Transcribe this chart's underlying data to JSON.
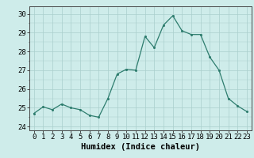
{
  "x": [
    0,
    1,
    2,
    3,
    4,
    5,
    6,
    7,
    8,
    9,
    10,
    11,
    12,
    13,
    14,
    15,
    16,
    17,
    18,
    19,
    20,
    21,
    22,
    23
  ],
  "y": [
    24.7,
    25.05,
    24.9,
    25.2,
    25.0,
    24.9,
    24.6,
    24.5,
    25.5,
    26.8,
    27.05,
    27.0,
    28.8,
    28.2,
    29.4,
    29.9,
    29.1,
    28.9,
    28.9,
    27.7,
    27.0,
    25.5,
    25.1,
    24.8
  ],
  "line_color": "#2e7d6e",
  "marker": "o",
  "marker_size": 2.2,
  "bg_color": "#ceecea",
  "grid_color": "#aacfcc",
  "xlabel": "Humidex (Indice chaleur)",
  "ylim": [
    23.8,
    30.4
  ],
  "xlim": [
    -0.5,
    23.5
  ],
  "yticks": [
    24,
    25,
    26,
    27,
    28,
    29,
    30
  ],
  "xticks": [
    0,
    1,
    2,
    3,
    4,
    5,
    6,
    7,
    8,
    9,
    10,
    11,
    12,
    13,
    14,
    15,
    16,
    17,
    18,
    19,
    20,
    21,
    22,
    23
  ],
  "tick_fontsize": 6.5,
  "label_fontsize": 7.5
}
